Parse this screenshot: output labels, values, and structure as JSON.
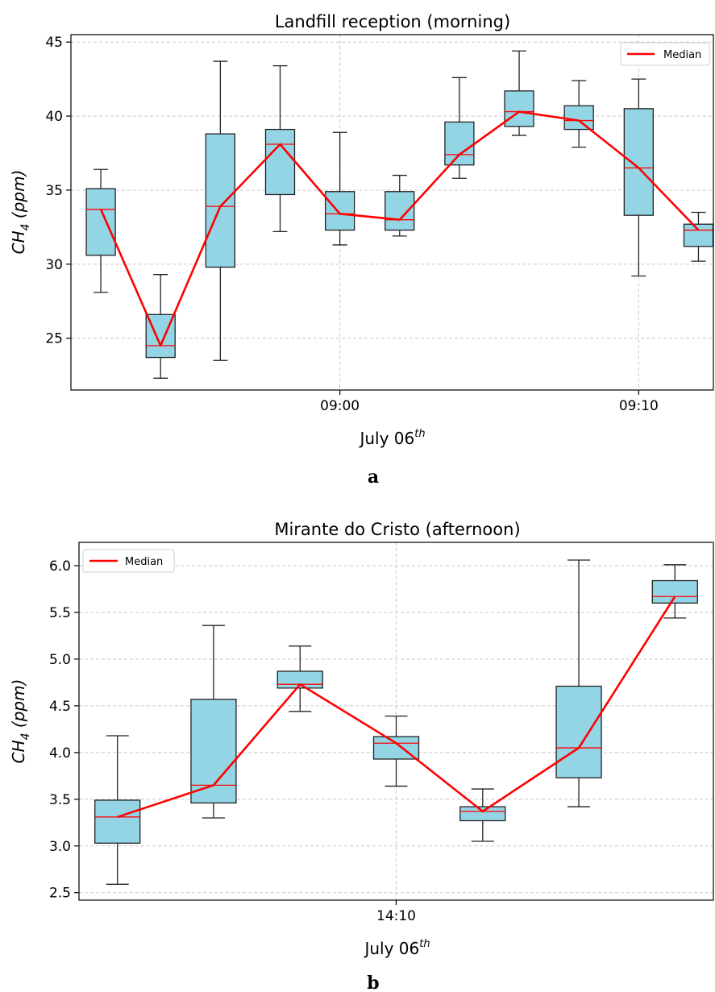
{
  "colors": {
    "box_fill": "#93d5e5",
    "box_edge": "#222222",
    "median": "#ff0000",
    "grid": "#c8c8c8"
  },
  "figure_labels": [
    "a",
    "b"
  ],
  "chart_data": [
    {
      "type": "box",
      "title": "Landfill reception (morning)",
      "xlabel": "July 06th",
      "ylabel": "CH4 (ppm)",
      "ylim": [
        21.5,
        45.5
      ],
      "yticks": [
        25,
        30,
        35,
        40,
        45
      ],
      "xtick_labels": [
        "09:00",
        "09:10"
      ],
      "xlim_minutes": [
        -9,
        12.5
      ],
      "xtick_minutes": [
        0,
        10
      ],
      "legend": {
        "label": "Median",
        "position": "top-right"
      },
      "grid": true,
      "boxes": [
        {
          "t": -8,
          "min": 28.1,
          "q1": 30.6,
          "median": 33.7,
          "q3": 35.1,
          "max": 36.4
        },
        {
          "t": -6,
          "min": 22.3,
          "q1": 23.7,
          "median": 24.5,
          "q3": 26.6,
          "max": 29.3
        },
        {
          "t": -4,
          "min": 23.5,
          "q1": 29.8,
          "median": 33.9,
          "q3": 38.8,
          "max": 43.7
        },
        {
          "t": -2,
          "min": 32.2,
          "q1": 34.7,
          "median": 38.1,
          "q3": 39.1,
          "max": 43.4
        },
        {
          "t": 0,
          "min": 31.3,
          "q1": 32.3,
          "median": 33.4,
          "q3": 34.9,
          "max": 38.9
        },
        {
          "t": 2,
          "min": 31.9,
          "q1": 32.3,
          "median": 33.0,
          "q3": 34.9,
          "max": 36.0
        },
        {
          "t": 4,
          "min": 35.8,
          "q1": 36.7,
          "median": 37.4,
          "q3": 39.6,
          "max": 42.6
        },
        {
          "t": 6,
          "min": 38.7,
          "q1": 39.3,
          "median": 40.3,
          "q3": 41.7,
          "max": 44.4
        },
        {
          "t": 8,
          "min": 37.9,
          "q1": 39.1,
          "median": 39.7,
          "q3": 40.7,
          "max": 42.4
        },
        {
          "t": 10,
          "min": 29.2,
          "q1": 33.3,
          "median": 36.5,
          "q3": 40.5,
          "max": 42.5
        },
        {
          "t": 12,
          "min": 30.2,
          "q1": 31.2,
          "median": 32.3,
          "q3": 32.7,
          "max": 33.5
        }
      ]
    },
    {
      "type": "box",
      "title": "Mirante do Cristo (afternoon)",
      "xlabel": "July 06th",
      "ylabel": "CH4 (ppm)",
      "ylim": [
        2.42,
        6.25
      ],
      "yticks": [
        2.5,
        3.0,
        3.5,
        4.0,
        4.5,
        5.0,
        5.5,
        6.0
      ],
      "xtick_labels": [
        "14:10"
      ],
      "xlim_minutes": [
        -16.5,
        16.5
      ],
      "xtick_minutes": [
        0
      ],
      "legend": {
        "label": "Median",
        "position": "top-left"
      },
      "grid": true,
      "boxes": [
        {
          "t": -14.5,
          "min": 2.59,
          "q1": 3.03,
          "median": 3.31,
          "q3": 3.49,
          "max": 4.18
        },
        {
          "t": -9.5,
          "min": 3.3,
          "q1": 3.46,
          "median": 3.65,
          "q3": 4.57,
          "max": 5.36
        },
        {
          "t": -5,
          "min": 4.44,
          "q1": 4.69,
          "median": 4.73,
          "q3": 4.87,
          "max": 5.14
        },
        {
          "t": 0,
          "min": 3.64,
          "q1": 3.93,
          "median": 4.1,
          "q3": 4.17,
          "max": 4.39
        },
        {
          "t": 4.5,
          "min": 3.05,
          "q1": 3.27,
          "median": 3.37,
          "q3": 3.42,
          "max": 3.61
        },
        {
          "t": 9.5,
          "min": 3.42,
          "q1": 3.73,
          "median": 4.05,
          "q3": 4.71,
          "max": 6.06
        },
        {
          "t": 14.5,
          "min": 5.44,
          "q1": 5.6,
          "median": 5.67,
          "q3": 5.84,
          "max": 6.01
        }
      ]
    }
  ]
}
